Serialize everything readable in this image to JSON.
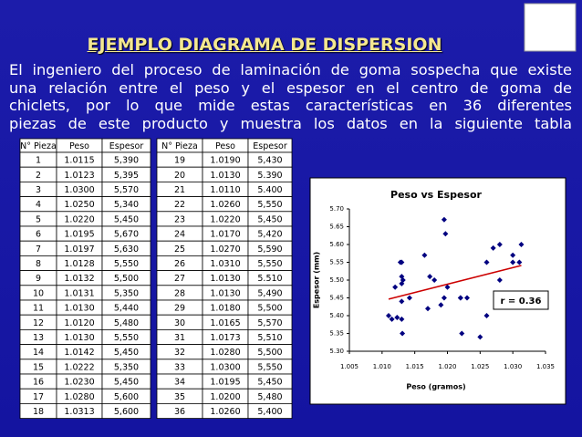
{
  "title": "EJEMPLO DIAGRAMA DE DISPERSION",
  "paragraph": [
    "El ingeniero del proceso de laminación de goma sospecha que existe",
    "una relación entre el peso y el espesor en el centro de goma de",
    "chiclets, por lo que mide estas características en 36 diferentes",
    "piezas de este producto y muestra los datos en la siguiente tabla"
  ],
  "table": {
    "headers": [
      "N° Pieza",
      "Peso",
      "Espesor",
      "N° Pieza",
      "Peso",
      "Espesor"
    ],
    "rows": [
      [
        1,
        "1.0115",
        "5,390",
        19,
        "1.0190",
        "5,430"
      ],
      [
        2,
        "1.0123",
        "5,395",
        20,
        "1.0130",
        "5.390"
      ],
      [
        3,
        "1.0300",
        "5,570",
        21,
        "1.0110",
        "5.400"
      ],
      [
        4,
        "1.0250",
        "5,340",
        22,
        "1.0260",
        "5,550"
      ],
      [
        5,
        "1.0220",
        "5,450",
        23,
        "1.0220",
        "5,450"
      ],
      [
        6,
        "1.0195",
        "5,670",
        24,
        "1.0170",
        "5,420"
      ],
      [
        7,
        "1.0197",
        "5,630",
        25,
        "1.0270",
        "5,590"
      ],
      [
        8,
        "1.0128",
        "5,550",
        26,
        "1.0310",
        "5,550"
      ],
      [
        9,
        "1.0132",
        "5,500",
        27,
        "1.0130",
        "5.510"
      ],
      [
        10,
        "1.0131",
        "5,350",
        28,
        "1.0130",
        "5,490"
      ],
      [
        11,
        "1.0130",
        "5,440",
        29,
        "1.0180",
        "5,500"
      ],
      [
        12,
        "1.0120",
        "5,480",
        30,
        "1.0165",
        "5,570"
      ],
      [
        13,
        "1.0130",
        "5,550",
        31,
        "1.0173",
        "5,510"
      ],
      [
        14,
        "1.0142",
        "5,450",
        32,
        "1.0280",
        "5,500"
      ],
      [
        15,
        "1.0222",
        "5,350",
        33,
        "1.0300",
        "5,550"
      ],
      [
        16,
        "1.0230",
        "5,450",
        34,
        "1.0195",
        "5,450"
      ],
      [
        17,
        "1.0280",
        "5,600",
        35,
        "1.0200",
        "5,480"
      ],
      [
        18,
        "1.0313",
        "5,600",
        36,
        "1.0260",
        "5,400"
      ]
    ]
  },
  "chart_data": {
    "type": "scatter",
    "title": "Peso vs Espesor",
    "x_label": "Peso (gramos)",
    "y_label": "Espesor (mm)",
    "annotation": "r = 0.36",
    "color": "#000080",
    "trendline_color": "#cc0000",
    "x": [
      1.0115,
      1.0123,
      1.03,
      1.025,
      1.022,
      1.0195,
      1.0197,
      1.0128,
      1.0132,
      1.0131,
      1.013,
      1.012,
      1.013,
      1.0142,
      1.0222,
      1.023,
      1.028,
      1.0313,
      1.019,
      1.013,
      1.011,
      1.026,
      1.022,
      1.017,
      1.027,
      1.031,
      1.013,
      1.013,
      1.018,
      1.0165,
      1.0173,
      1.028,
      1.03,
      1.0195,
      1.02,
      1.026
    ],
    "values": [
      5.39,
      5.395,
      5.57,
      5.34,
      5.45,
      5.67,
      5.63,
      5.55,
      5.5,
      5.35,
      5.44,
      5.48,
      5.55,
      5.45,
      5.35,
      5.45,
      5.6,
      5.6,
      5.43,
      5.39,
      5.4,
      5.55,
      5.45,
      5.42,
      5.59,
      5.55,
      5.51,
      5.49,
      5.5,
      5.57,
      5.51,
      5.5,
      5.55,
      5.45,
      5.48,
      5.4
    ],
    "xlim": [
      1.005,
      1.035
    ],
    "xticks": [
      1.005,
      {
        "value": 1.01,
        "label": "1.010"
      },
      1.015,
      {
        "value": 1.02,
        "label": "1.020"
      },
      1.025,
      {
        "value": 1.03,
        "label": "1.030"
      },
      1.035
    ],
    "ylim": [
      5.3,
      5.7
    ],
    "yticks": [
      {
        "value": 5.3,
        "label": "5.30"
      },
      5.35,
      {
        "value": 5.4,
        "label": "5.40"
      },
      5.45,
      {
        "value": 5.5,
        "label": "5.50"
      },
      5.55,
      {
        "value": 5.6,
        "label": "5.60"
      },
      5.65,
      {
        "value": 5.7,
        "label": "5.70"
      }
    ]
  }
}
